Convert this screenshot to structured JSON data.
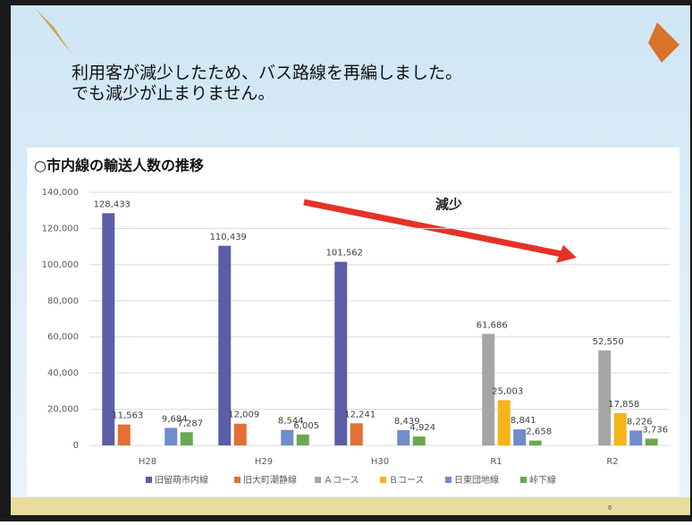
{
  "heading": [
    "利用客が減少したため、バス路線を再編しました。",
    "でも減少が止まりません。"
  ],
  "page_number": "6",
  "chart_data": {
    "type": "bar",
    "title": "○市内線の輸送人数の推移",
    "annotation": "減少",
    "categories": [
      "H28",
      "H29",
      "H30",
      "R1",
      "R2"
    ],
    "series": [
      {
        "name": "旧留萌市内線",
        "color": "#5b5ea6",
        "values": [
          128433,
          110439,
          101562,
          null,
          null
        ],
        "value_labels": [
          "128,433",
          "110,439",
          "101,562",
          null,
          null
        ]
      },
      {
        "name": "旧大町潮静線",
        "color": "#e36f35",
        "values": [
          11563,
          12009,
          12241,
          null,
          null
        ],
        "value_labels": [
          "11,563",
          "12,009",
          "12,241",
          null,
          null
        ]
      },
      {
        "name": "Ａコース",
        "color": "#a5a5a5",
        "values": [
          null,
          null,
          null,
          61686,
          52550
        ],
        "value_labels": [
          null,
          null,
          null,
          "61,686",
          "52,550"
        ]
      },
      {
        "name": "Ｂコース",
        "color": "#f6b418",
        "values": [
          null,
          null,
          null,
          25003,
          17858
        ],
        "value_labels": [
          null,
          null,
          null,
          "25,003",
          "17,858"
        ]
      },
      {
        "name": "日東団地線",
        "color": "#6f8ccb",
        "values": [
          9684,
          8544,
          8439,
          8841,
          8226
        ],
        "value_labels": [
          "9,684",
          "8,544",
          "8,439",
          "8,841",
          "8,226"
        ]
      },
      {
        "name": "峠下線",
        "color": "#6aa84f",
        "values": [
          7287,
          6005,
          4924,
          2658,
          3736
        ],
        "value_labels": [
          "7,287",
          "6,005",
          "4,924",
          "2,658",
          "3,736"
        ]
      }
    ],
    "ylim": [
      0,
      140000
    ],
    "yticks": [
      0,
      {
        "value": 20000,
        "label": "20,000"
      },
      {
        "value": 40000,
        "label": "40,000"
      },
      {
        "value": 60000,
        "label": "60,000"
      },
      {
        "value": 80000,
        "label": "80,000"
      },
      {
        "value": 100000,
        "label": "100,000"
      },
      {
        "value": 120000,
        "label": "120,000"
      },
      {
        "value": 140000,
        "label": "140,000"
      }
    ],
    "grid": true
  }
}
